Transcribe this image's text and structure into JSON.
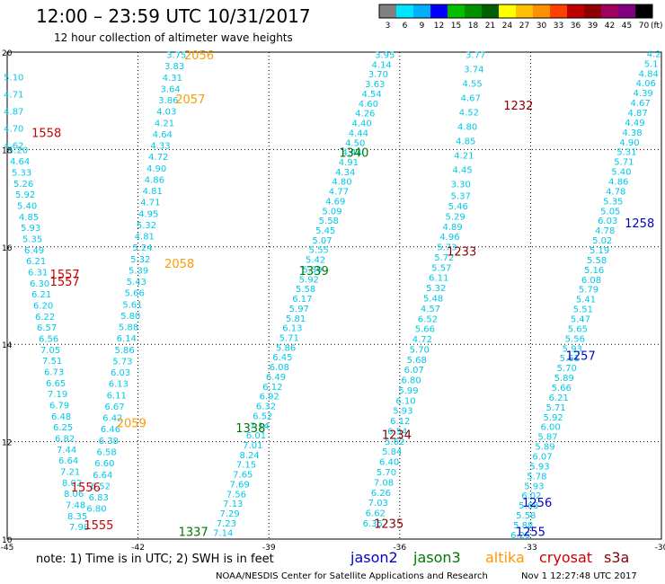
{
  "chart_data": {
    "type": "scatter",
    "title": "12:00 – 23:59 UTC 10/31/2017",
    "subtitle": "12 hour collection of altimeter wave heights",
    "x_ticks": [
      "-45",
      "-42",
      "-39",
      "-36",
      "-33",
      "-30"
    ],
    "y_ticks": [
      "10",
      "12",
      "14",
      "16",
      "18",
      "20"
    ],
    "xlim": [
      -45,
      -30
    ],
    "ylim": [
      10,
      20
    ],
    "grid": true,
    "colorbar": {
      "unit": "(ft)",
      "labels": [
        "3",
        "6",
        "9",
        "12",
        "15",
        "18",
        "21",
        "24",
        "27",
        "30",
        "33",
        "36",
        "39",
        "42",
        "45",
        "70"
      ],
      "colors": [
        "#808080",
        "#00e5ff",
        "#00b0ff",
        "#0000ff",
        "#00c000",
        "#009000",
        "#006000",
        "#ffff00",
        "#ffc000",
        "#ff9000",
        "#ff4000",
        "#c00000",
        "#900000",
        "#a00060",
        "#800080",
        "#000000"
      ]
    },
    "satellites": [
      {
        "name": "jason2",
        "color": "#0000cc"
      },
      {
        "name": "jason3",
        "color": "#007700"
      },
      {
        "name": "altika",
        "color": "#ff9900"
      },
      {
        "name": "cryosat",
        "color": "#cc0000"
      },
      {
        "name": "s3a",
        "color": "#880000"
      }
    ],
    "tracks": [
      {
        "lon0": -44.85,
        "lat0": 19.42,
        "lon1": -44.85,
        "lat1": 18.02,
        "values": [
          "5.10",
          "4.71",
          "4.87",
          "4.70",
          "4.62"
        ]
      },
      {
        "lon0": -44.75,
        "lat0": 17.92,
        "lon1": -43.35,
        "lat1": 10.18,
        "values": [
          "5.20",
          "4.64",
          "5.33",
          "5.26",
          "5.92",
          "5.40",
          "4.85",
          "5.93",
          "5.35",
          "6.49",
          "6.21",
          "6.31",
          "6.30",
          "6.21",
          "6.20",
          "6.22",
          "6.57",
          "6.56",
          "7.05",
          "7.51",
          "6.73",
          "6.65",
          "7.19",
          "6.79",
          "6.48",
          "6.25",
          "6.82",
          "7.44",
          "6.64",
          "7.21",
          "8.02",
          "8.06",
          "7.48",
          "8.35",
          "7.98"
        ]
      },
      {
        "lon0": -41.12,
        "lat0": 19.88,
        "lon1": -42.95,
        "lat1": 10.56,
        "values": [
          "3.75",
          "3.83",
          "4.31",
          "3.64",
          "3.86",
          "4.03",
          "4.21",
          "4.64",
          "4.33",
          "4.72",
          "4.90",
          "4.86",
          "4.81",
          "4.71",
          "4.95",
          "5.32",
          "4.81",
          "5.24",
          "5.32",
          "5.39",
          "5.43",
          "5.66",
          "5.61",
          "5.80",
          "5.88",
          "6.14",
          "5.86",
          "5.73",
          "6.03",
          "6.13",
          "6.11",
          "6.67",
          "6.42",
          "6.46",
          "6.38",
          "6.58",
          "6.60",
          "6.64",
          "6.52",
          "6.83",
          "6.80"
        ]
      },
      {
        "lon0": -36.34,
        "lat0": 19.88,
        "lon1": -40.05,
        "lat1": 10.06,
        "values": [
          "3.95",
          "4.14",
          "3.70",
          "3.63",
          "4.54",
          "4.60",
          "4.26",
          "4.40",
          "4.44",
          "4.50",
          "4.44",
          "4.91",
          "4.34",
          "4.80",
          "4.77",
          "4.69",
          "5.09",
          "5.58",
          "5.45",
          "5.07",
          "5.55",
          "5.42",
          "5.39",
          "5.92",
          "5.58",
          "6.17",
          "5.97",
          "5.81",
          "6.13",
          "5.71",
          "5.86",
          "6.45",
          "6.08",
          "6.49",
          "6.12",
          "6.92",
          "6.32",
          "6.52",
          "7.14",
          "6.01",
          "7.01",
          "8.24",
          "7.15",
          "7.65",
          "7.69",
          "7.56",
          "7.13",
          "7.29",
          "7.23",
          "7.14"
        ]
      },
      {
        "lon0": -34.26,
        "lat0": 19.88,
        "lon1": -34.6,
        "lat1": 17.22,
        "values": [
          "3.77",
          "3.74",
          "4.55",
          "4.67",
          "4.52",
          "4.80",
          "4.85",
          "4.21",
          "4.45",
          "3.30"
        ]
      },
      {
        "lon0": -34.6,
        "lat0": 16.98,
        "lon1": -36.62,
        "lat1": 10.26,
        "values": [
          "5.37",
          "5.46",
          "5.29",
          "4.89",
          "4.96",
          "5.73",
          "5.72",
          "5.57",
          "6.11",
          "5.32",
          "5.48",
          "4.57",
          "6.52",
          "5.66",
          "4.72",
          "5.70",
          "5.68",
          "6.07",
          "6.80",
          "5.99",
          "6.10",
          "5.93",
          "6.12",
          "6.54",
          "5.62",
          "5.84",
          "6.40",
          "5.70",
          "7.08",
          "6.26",
          "7.03",
          "6.62",
          "6.35"
        ]
      },
      {
        "lon0": -30.17,
        "lat0": 19.9,
        "lon1": -33.23,
        "lat1": 10.02,
        "values": [
          "4.2",
          "5.1",
          "4.84",
          "4.06",
          "4.39",
          "4.67",
          "4.87",
          "4.49",
          "4.38",
          "4.90",
          "5.31",
          "5.71",
          "5.40",
          "4.86",
          "4.78",
          "5.35",
          "5.05",
          "6.03",
          "4.78",
          "5.02",
          "5.19",
          "5.58",
          "5.16",
          "6.08",
          "5.79",
          "5.41",
          "5.51",
          "5.47",
          "5.65",
          "5.56",
          "5.93",
          "5.61",
          "5.70",
          "5.89",
          "5.66",
          "6.21",
          "5.71",
          "5.92",
          "6.00",
          "5.87",
          "5.89",
          "6.07",
          "5.93",
          "5.78",
          "5.93",
          "6.02",
          "5.68",
          "5.58",
          "5.88",
          "6.25"
        ]
      }
    ],
    "pass_labels": [
      {
        "text": "1558",
        "lon": -44.1,
        "lat": 18.26,
        "sat": "cryosat"
      },
      {
        "text": "1557",
        "lon": -43.68,
        "lat": 15.35,
        "sat": "cryosat"
      },
      {
        "text": "1557",
        "lon": -43.68,
        "lat": 15.2,
        "sat": "cryosat"
      },
      {
        "text": "1556",
        "lon": -43.2,
        "lat": 10.98,
        "sat": "cryosat"
      },
      {
        "text": "1555",
        "lon": -42.9,
        "lat": 10.2,
        "sat": "cryosat"
      },
      {
        "text": "2056",
        "lon": -40.6,
        "lat": 19.85,
        "sat": "altika"
      },
      {
        "text": "2057",
        "lon": -40.8,
        "lat": 18.95,
        "sat": "altika"
      },
      {
        "text": "2058",
        "lon": -41.05,
        "lat": 15.57,
        "sat": "altika"
      },
      {
        "text": "2059",
        "lon": -42.15,
        "lat": 12.3,
        "sat": "altika"
      },
      {
        "text": "1340",
        "lon": -37.05,
        "lat": 17.85,
        "sat": "jason3"
      },
      {
        "text": "1339",
        "lon": -37.97,
        "lat": 15.42,
        "sat": "jason3"
      },
      {
        "text": "1338",
        "lon": -39.42,
        "lat": 12.2,
        "sat": "jason3"
      },
      {
        "text": "1337",
        "lon": -40.73,
        "lat": 10.06,
        "sat": "jason3"
      },
      {
        "text": "1232",
        "lon": -33.28,
        "lat": 18.82,
        "sat": "s3a"
      },
      {
        "text": "1233",
        "lon": -34.58,
        "lat": 15.82,
        "sat": "s3a"
      },
      {
        "text": "1234",
        "lon": -36.07,
        "lat": 12.06,
        "sat": "s3a"
      },
      {
        "text": "1235",
        "lon": -36.25,
        "lat": 10.23,
        "sat": "s3a"
      },
      {
        "text": "1258",
        "lon": -30.5,
        "lat": 16.4,
        "sat": "jason2"
      },
      {
        "text": "1257",
        "lon": -31.85,
        "lat": 13.68,
        "sat": "jason2"
      },
      {
        "text": "1256",
        "lon": -32.85,
        "lat": 10.66,
        "sat": "jason2"
      },
      {
        "text": "1255",
        "lon": -33.0,
        "lat": 10.06,
        "sat": "jason2"
      }
    ]
  },
  "notes": {
    "note_text": "note:  1) Time is in UTC;  2) SWH is in feet",
    "footer_left": "NOAA/NESDIS Center for Satellite Applications and Research",
    "footer_right": "Nov  1 12:27:48 UTC 2017"
  }
}
